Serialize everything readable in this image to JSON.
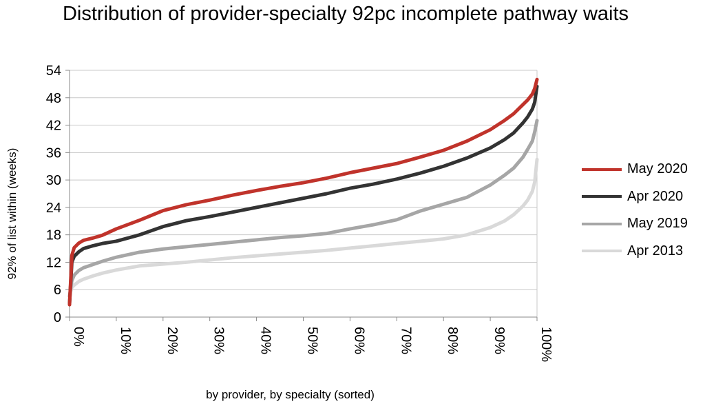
{
  "chart_data": {
    "type": "line",
    "title": "Distribution of provider-specialty 92pc incomplete pathway waits",
    "xlabel": "by provider, by specialty (sorted)",
    "ylabel": "92% of list within (weeks)",
    "xlim": [
      0,
      100
    ],
    "ylim": [
      0,
      54
    ],
    "x_ticks": [
      0,
      10,
      20,
      30,
      40,
      50,
      60,
      70,
      80,
      90,
      100
    ],
    "x_tick_labels": [
      "0%",
      "10%",
      "20%",
      "30%",
      "40%",
      "50%",
      "60%",
      "70%",
      "80%",
      "90%",
      "100%"
    ],
    "y_ticks": [
      0,
      6,
      12,
      18,
      24,
      30,
      36,
      42,
      48,
      54
    ],
    "y_tick_labels": [
      "0",
      "6",
      "12",
      "18",
      "24",
      "30",
      "36",
      "42",
      "48",
      "54"
    ],
    "grid": "horizontal",
    "legend_position": "right",
    "x": [
      0,
      0.5,
      1,
      2,
      3,
      5,
      7,
      10,
      15,
      20,
      25,
      30,
      35,
      40,
      45,
      50,
      55,
      60,
      65,
      70,
      75,
      80,
      85,
      90,
      93,
      95,
      97,
      98,
      99,
      99.5,
      100
    ],
    "series": [
      {
        "name": "May 2020",
        "color": "#c0332b",
        "values": [
          2.7,
          13.5,
          15.2,
          16.2,
          16.8,
          17.3,
          17.9,
          19.3,
          21.2,
          23.3,
          24.6,
          25.6,
          26.7,
          27.7,
          28.6,
          29.4,
          30.4,
          31.6,
          32.6,
          33.6,
          35.0,
          36.5,
          38.5,
          41.0,
          43.0,
          44.5,
          46.5,
          47.5,
          48.8,
          50.0,
          52.0
        ]
      },
      {
        "name": "Apr 2020",
        "color": "#333333",
        "values": [
          3.0,
          12.0,
          13.3,
          14.3,
          15.0,
          15.6,
          16.1,
          16.6,
          18.0,
          19.8,
          21.1,
          22.0,
          23.0,
          24.0,
          25.0,
          26.0,
          27.0,
          28.2,
          29.1,
          30.2,
          31.5,
          33.0,
          34.8,
          37.0,
          38.8,
          40.3,
          42.5,
          43.8,
          45.5,
          47.0,
          50.5
        ]
      },
      {
        "name": "May 2019",
        "color": "#a6a6a6",
        "values": [
          4.5,
          8.0,
          9.2,
          10.2,
          10.8,
          11.5,
          12.2,
          13.1,
          14.2,
          14.9,
          15.4,
          15.9,
          16.4,
          16.9,
          17.4,
          17.8,
          18.3,
          19.3,
          20.2,
          21.3,
          23.2,
          24.7,
          26.2,
          28.9,
          31.0,
          32.6,
          35.0,
          36.7,
          38.5,
          40.5,
          43.0
        ]
      },
      {
        "name": "Apr 2013",
        "color": "#d9d9d9",
        "values": [
          4.8,
          6.5,
          7.0,
          7.8,
          8.3,
          9.0,
          9.6,
          10.3,
          11.2,
          11.6,
          12.0,
          12.5,
          13.0,
          13.4,
          13.8,
          14.2,
          14.6,
          15.1,
          15.6,
          16.1,
          16.6,
          17.1,
          18.0,
          19.6,
          21.0,
          22.4,
          24.3,
          25.6,
          27.5,
          29.5,
          34.5
        ]
      }
    ]
  }
}
